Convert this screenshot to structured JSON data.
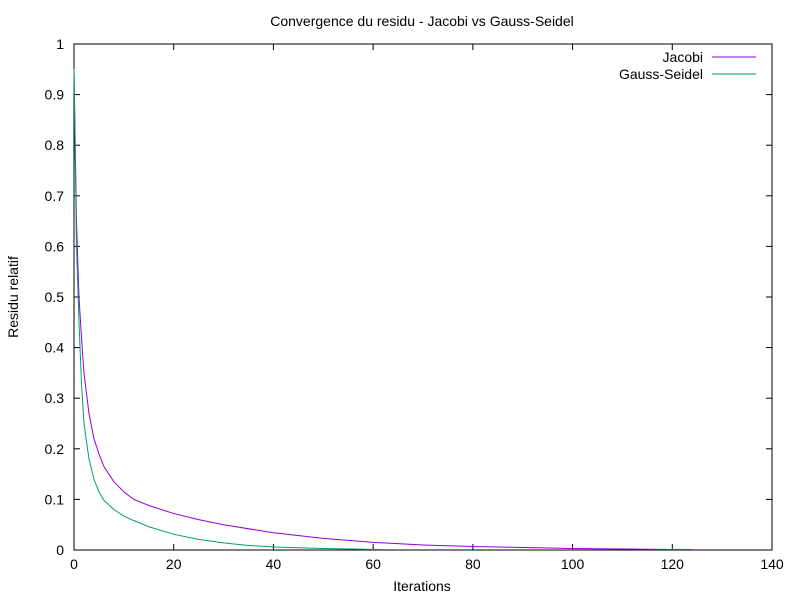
{
  "chart_data": {
    "type": "line",
    "title": "Convergence du residu - Jacobi vs Gauss-Seidel",
    "xlabel": "Iterations",
    "ylabel": "Residu relatif",
    "xlim": [
      0,
      140
    ],
    "ylim": [
      0,
      1
    ],
    "x_ticks": [
      0,
      20,
      40,
      60,
      80,
      100,
      120,
      140
    ],
    "y_ticks": [
      0,
      0.1,
      0.2,
      0.3,
      0.4,
      0.5,
      0.6,
      0.7,
      0.8,
      0.9,
      1
    ],
    "grid": false,
    "legend_position": "top-right",
    "series": [
      {
        "name": "Jacobi",
        "color": "#9400d3",
        "x": [
          0,
          0.5,
          1,
          1.5,
          2,
          3,
          4,
          5,
          6,
          8,
          10,
          12,
          15,
          20,
          25,
          30,
          40,
          50,
          60,
          70,
          80,
          90,
          100,
          110,
          120,
          124
        ],
        "y": [
          0.95,
          0.65,
          0.5,
          0.42,
          0.35,
          0.27,
          0.22,
          0.19,
          0.165,
          0.135,
          0.115,
          0.1,
          0.088,
          0.072,
          0.06,
          0.05,
          0.034,
          0.023,
          0.015,
          0.01,
          0.007,
          0.005,
          0.003,
          0.002,
          0.001,
          0.0008
        ]
      },
      {
        "name": "Gauss-Seidel",
        "color": "#009e73",
        "x": [
          0,
          0.5,
          1,
          1.5,
          2,
          3,
          4,
          5,
          6,
          8,
          10,
          12,
          15,
          20,
          25,
          30,
          35,
          40,
          50,
          62
        ],
        "y": [
          0.95,
          0.6,
          0.45,
          0.33,
          0.25,
          0.18,
          0.14,
          0.115,
          0.098,
          0.08,
          0.067,
          0.058,
          0.046,
          0.031,
          0.021,
          0.014,
          0.009,
          0.006,
          0.003,
          0.001
        ]
      }
    ]
  }
}
